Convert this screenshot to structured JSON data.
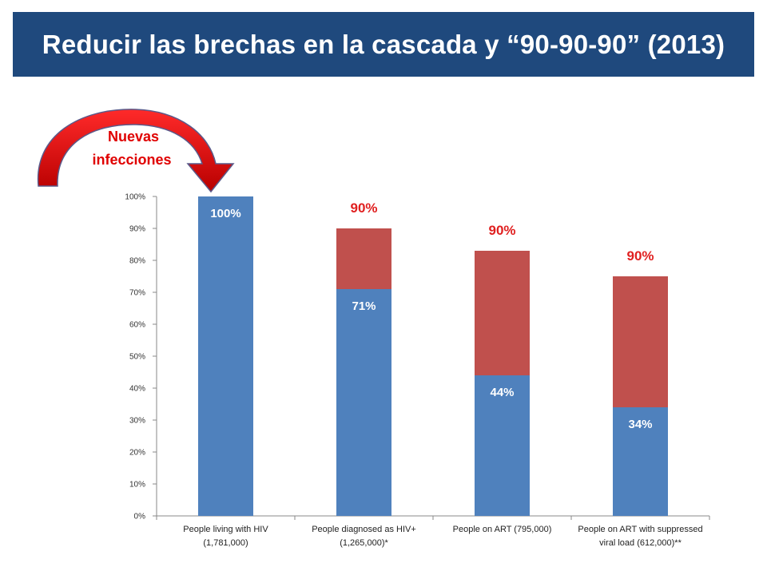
{
  "slide": {
    "title": "Reducir las brechas en la cascada y “90-90-90” (2013)",
    "title_bar_color": "#1f497d",
    "arrow_label_line1": "Nuevas",
    "arrow_label_line2": "infecciones",
    "arrow_color": "#e00000",
    "arrow_icon": "curved-arrow-icon"
  },
  "chart_data": {
    "type": "bar",
    "stacked": true,
    "categories": [
      [
        "People living with HIV",
        "(1,781,000)"
      ],
      [
        "People diagnosed as HIV+",
        "(1,265,000)*"
      ],
      [
        "People on ART (795,000)"
      ],
      [
        "People on ART with suppressed",
        "viral load (612,000)**"
      ]
    ],
    "series": [
      {
        "values": [
          100,
          71,
          44,
          34
        ],
        "color": "#4f81bd"
      },
      {
        "values": [
          0,
          19,
          39,
          41
        ],
        "color": "#c0504d"
      }
    ],
    "inner_labels": [
      "100%",
      "71%",
      "44%",
      "34%"
    ],
    "top_labels": [
      "",
      "90%",
      "90%",
      "90%"
    ],
    "top_label_color": "#e02020",
    "ylim": [
      0,
      100
    ],
    "yticks": [
      "0%",
      "10%",
      "20%",
      "30%",
      "40%",
      "50%",
      "60%",
      "70%",
      "80%",
      "90%",
      "100%"
    ],
    "grid": false,
    "legend": "none"
  }
}
